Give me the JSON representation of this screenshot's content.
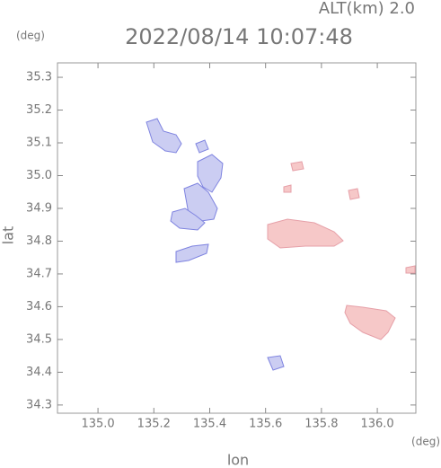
{
  "chart_data": {
    "type": "map",
    "title": "2022/08/14 10:07:48",
    "subtitle": "ALT(km) 2.0",
    "x_label": "lon",
    "y_label": "lat",
    "x_unit": "(deg)",
    "y_unit": "(deg)",
    "xlim": [
      134.855,
      136.138
    ],
    "ylim": [
      34.275,
      35.344
    ],
    "xticks": [
      {
        "value": 135,
        "label": "135.0"
      },
      135.2,
      135.4,
      135.6,
      135.8,
      {
        "value": 136,
        "label": "136.0"
      }
    ],
    "yticks": [
      34.3,
      34.4,
      34.5,
      34.6,
      34.7,
      34.8,
      34.9,
      {
        "value": 35,
        "label": "35.0"
      },
      35.1,
      35.2,
      35.3
    ]
  }
}
